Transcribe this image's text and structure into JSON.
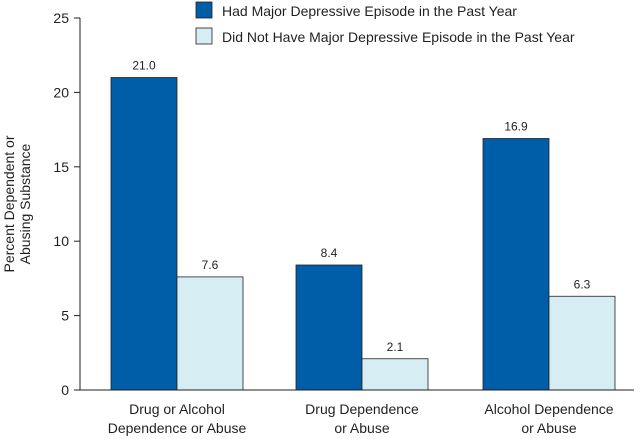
{
  "chart_data": {
    "type": "bar",
    "ylabel_lines": [
      "Percent Dependent or",
      "Abusing Substance"
    ],
    "ylim": [
      0,
      25
    ],
    "yticks": [
      0,
      5,
      10,
      15,
      20,
      25
    ],
    "grid": false,
    "legend_position": "top-right",
    "categories": [
      [
        "Drug or Alcohol",
        "Dependence or Abuse"
      ],
      [
        "Drug Dependence",
        "or Abuse"
      ],
      [
        "Alcohol Dependence",
        "or Abuse"
      ]
    ],
    "series": [
      {
        "name": "Had Major Depressive Episode in the Past Year",
        "values": [
          21.0,
          8.4,
          16.9
        ],
        "labels": [
          "21.0",
          "8.4",
          "16.9"
        ],
        "color": "#005ea8"
      },
      {
        "name": "Did Not Have Major Depressive Episode in the Past Year",
        "values": [
          7.6,
          2.1,
          6.3
        ],
        "labels": [
          "7.6",
          "2.1",
          "6.3"
        ],
        "color": "#d6eef3"
      }
    ]
  }
}
